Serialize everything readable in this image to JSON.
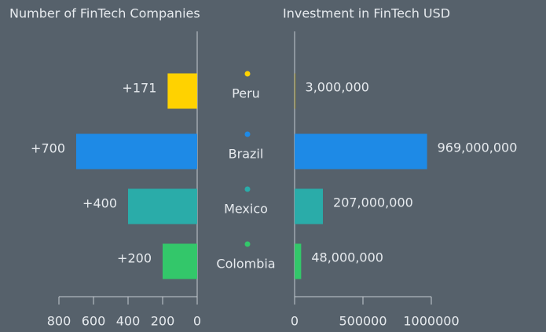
{
  "chart_data": [
    {
      "type": "bar",
      "orientation": "horizontal",
      "title": "Number of FinTech Companies",
      "categories": [
        "Peru",
        "Brazil",
        "Mexico",
        "Colombia"
      ],
      "values": [
        171,
        700,
        400,
        200
      ],
      "value_labels": [
        "+171",
        "+700",
        "+400",
        "+200"
      ],
      "colors": [
        "#ffd200",
        "#1e8ae6",
        "#2aaca9",
        "#33c76a"
      ],
      "xlim": [
        0,
        800
      ],
      "xticks": [
        800,
        600,
        400,
        200,
        0
      ],
      "reversed": true
    },
    {
      "type": "bar",
      "orientation": "horizontal",
      "title": "Investment in FinTech USD",
      "categories": [
        "Peru",
        "Brazil",
        "Mexico",
        "Colombia"
      ],
      "values": [
        3000,
        969000,
        207000,
        48000
      ],
      "value_labels": [
        "3,000,000",
        "969,000,000",
        "207,000,000",
        "48,000,000"
      ],
      "colors": [
        "#ffd200",
        "#1e8ae6",
        "#2aaca9",
        "#33c76a"
      ],
      "xlim": [
        0,
        1000000
      ],
      "xticks": [
        0,
        500000,
        1000000
      ],
      "reversed": false
    }
  ]
}
